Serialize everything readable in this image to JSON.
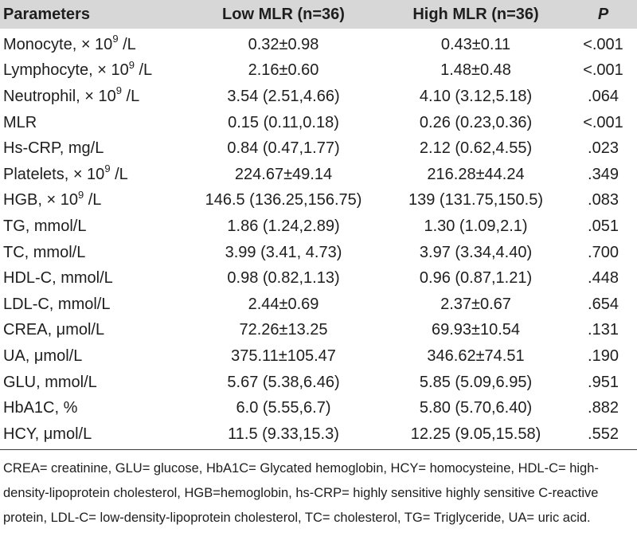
{
  "table": {
    "headers": {
      "parameters": "Parameters",
      "low": "Low MLR (n=36)",
      "high": "High MLR (n=36)",
      "p": "P"
    },
    "rows": [
      {
        "label": "Monocyte, × 10",
        "sup": "9",
        "unit": " /L",
        "low": "0.32±0.98",
        "high": "0.43±0.11",
        "p": "<.001"
      },
      {
        "label": "Lymphocyte, × 10",
        "sup": "9",
        "unit": " /L",
        "low": "2.16±0.60",
        "high": "1.48±0.48",
        "p": "<.001"
      },
      {
        "label": "Neutrophil, × 10",
        "sup": "9",
        "unit": " /L",
        "low": "3.54 (2.51,4.66)",
        "high": "4.10 (3.12,5.18)",
        "p": ".064"
      },
      {
        "label": "MLR",
        "low": "0.15 (0.11,0.18)",
        "high": "0.26 (0.23,0.36)",
        "p": "<.001"
      },
      {
        "label": "Hs-CRP, mg/L",
        "low": "0.84 (0.47,1.77)",
        "high": "2.12 (0.62,4.55)",
        "p": ".023"
      },
      {
        "label": "Platelets, × 10",
        "sup": "9",
        "unit": " /L",
        "low": "224.67±49.14",
        "high": "216.28±44.24",
        "p": ".349"
      },
      {
        "label": "HGB, × 10",
        "sup": "9",
        "unit": " /L",
        "low": "146.5 (136.25,156.75)",
        "high": "139 (131.75,150.5)",
        "p": ".083"
      },
      {
        "label": "TG, mmol/L",
        "low": "1.86 (1.24,2.89)",
        "high": "1.30 (1.09,2.1)",
        "p": ".051"
      },
      {
        "label": "TC, mmol/L",
        "low": "3.99 (3.41, 4.73)",
        "high": "3.97 (3.34,4.40)",
        "p": ".700"
      },
      {
        "label": "HDL-C, mmol/L",
        "low": "0.98 (0.82,1.13)",
        "high": "0.96 (0.87,1.21)",
        "p": ".448"
      },
      {
        "label": "LDL-C, mmol/L",
        "low": "2.44±0.69",
        "high": "2.37±0.67",
        "p": ".654"
      },
      {
        "label": "CREA, μmol/L",
        "low": "72.26±13.25",
        "high": "69.93±10.54",
        "p": ".131"
      },
      {
        "label": "UA, μmol/L",
        "low": "375.11±105.47",
        "high": "346.62±74.51",
        "p": ".190"
      },
      {
        "label": "GLU, mmol/L",
        "low": "5.67 (5.38,6.46)",
        "high": "5.85 (5.09,6.95)",
        "p": ".951"
      },
      {
        "label": "HbA1C, %",
        "low": "6.0 (5.55,6.7)",
        "high": "5.80 (5.70,6.40)",
        "p": ".882"
      },
      {
        "label": "HCY, μmol/L",
        "low": "11.5 (9.33,15.3)",
        "high": "12.25 (9.05,15.58)",
        "p": ".552"
      }
    ]
  },
  "footnote": "CREA= creatinine, GLU= glucose, HbA1C= Glycated hemoglobin, HCY= homocysteine, HDL-C= high-density-lipoprotein cholesterol, HGB=hemoglobin, hs-CRP= highly sensitive highly sensitive C-reactive protein, LDL-C= low-density-lipoprotein cholesterol, TC= cholesterol, TG= Triglyceride, UA= uric acid.",
  "colors": {
    "header_background": "#d7d7d7",
    "text": "#1e1e1e",
    "rule": "#3a3a3a"
  }
}
